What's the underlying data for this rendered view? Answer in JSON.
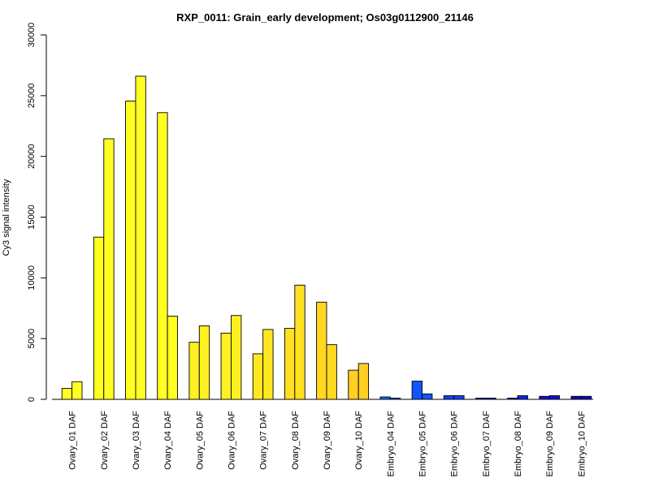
{
  "chart_data": {
    "type": "bar",
    "title": "RXP_0011: Grain_early development; Os03g0112900_21146",
    "xlabel": "",
    "ylabel": "Cy3 signal intensity",
    "ylim": [
      0,
      30000
    ],
    "yticks": [
      0,
      5000,
      10000,
      15000,
      20000,
      25000,
      30000
    ],
    "grid": false,
    "legend": "none",
    "categories": [
      "Ovary_01 DAF",
      "Ovary_02 DAF",
      "Ovary_03 DAF",
      "Ovary_04 DAF",
      "Ovary_05 DAF",
      "Ovary_06 DAF",
      "Ovary_07 DAF",
      "Ovary_08 DAF",
      "Ovary_09 DAF",
      "Ovary_10 DAF",
      "Embryo_04 DAF",
      "Embryo_05 DAF",
      "Embryo_06 DAF",
      "Embryo_07 DAF",
      "Embryo_08 DAF",
      "Embryo_09 DAF",
      "Embryo_10 DAF"
    ],
    "colors": [
      "#ffff22",
      "#ffff22",
      "#ffff22",
      "#ffff22",
      "#fff022",
      "#fff022",
      "#ffe822",
      "#ffe022",
      "#ffd822",
      "#ffd022",
      "#1166ff",
      "#1155ff",
      "#1144ff",
      "#1133ff",
      "#1122ee",
      "#1111dd",
      "#1100cc"
    ],
    "series": [
      {
        "values": [
          900,
          13350,
          24550,
          23600,
          4700,
          5450,
          3750,
          5850,
          8000,
          2400,
          200,
          1500,
          300,
          100,
          100,
          250,
          250
        ]
      },
      {
        "values": [
          1450,
          21450,
          26600,
          6850,
          6050,
          6900,
          5750,
          9400,
          4500,
          2950,
          100,
          450,
          300,
          100,
          300,
          300,
          250
        ]
      }
    ]
  }
}
